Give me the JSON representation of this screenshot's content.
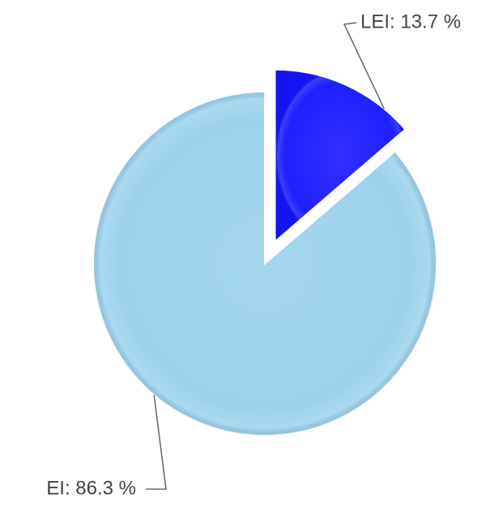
{
  "chart_data": {
    "type": "pie",
    "values": [
      13.7,
      86.3
    ],
    "value_labels": [
      "LEI: 13.7 %",
      "EI: 86.3 %"
    ],
    "colors": [
      "#1414ff",
      "#98d0ec"
    ],
    "explode": [
      true,
      false
    ],
    "start_angle": 0
  }
}
